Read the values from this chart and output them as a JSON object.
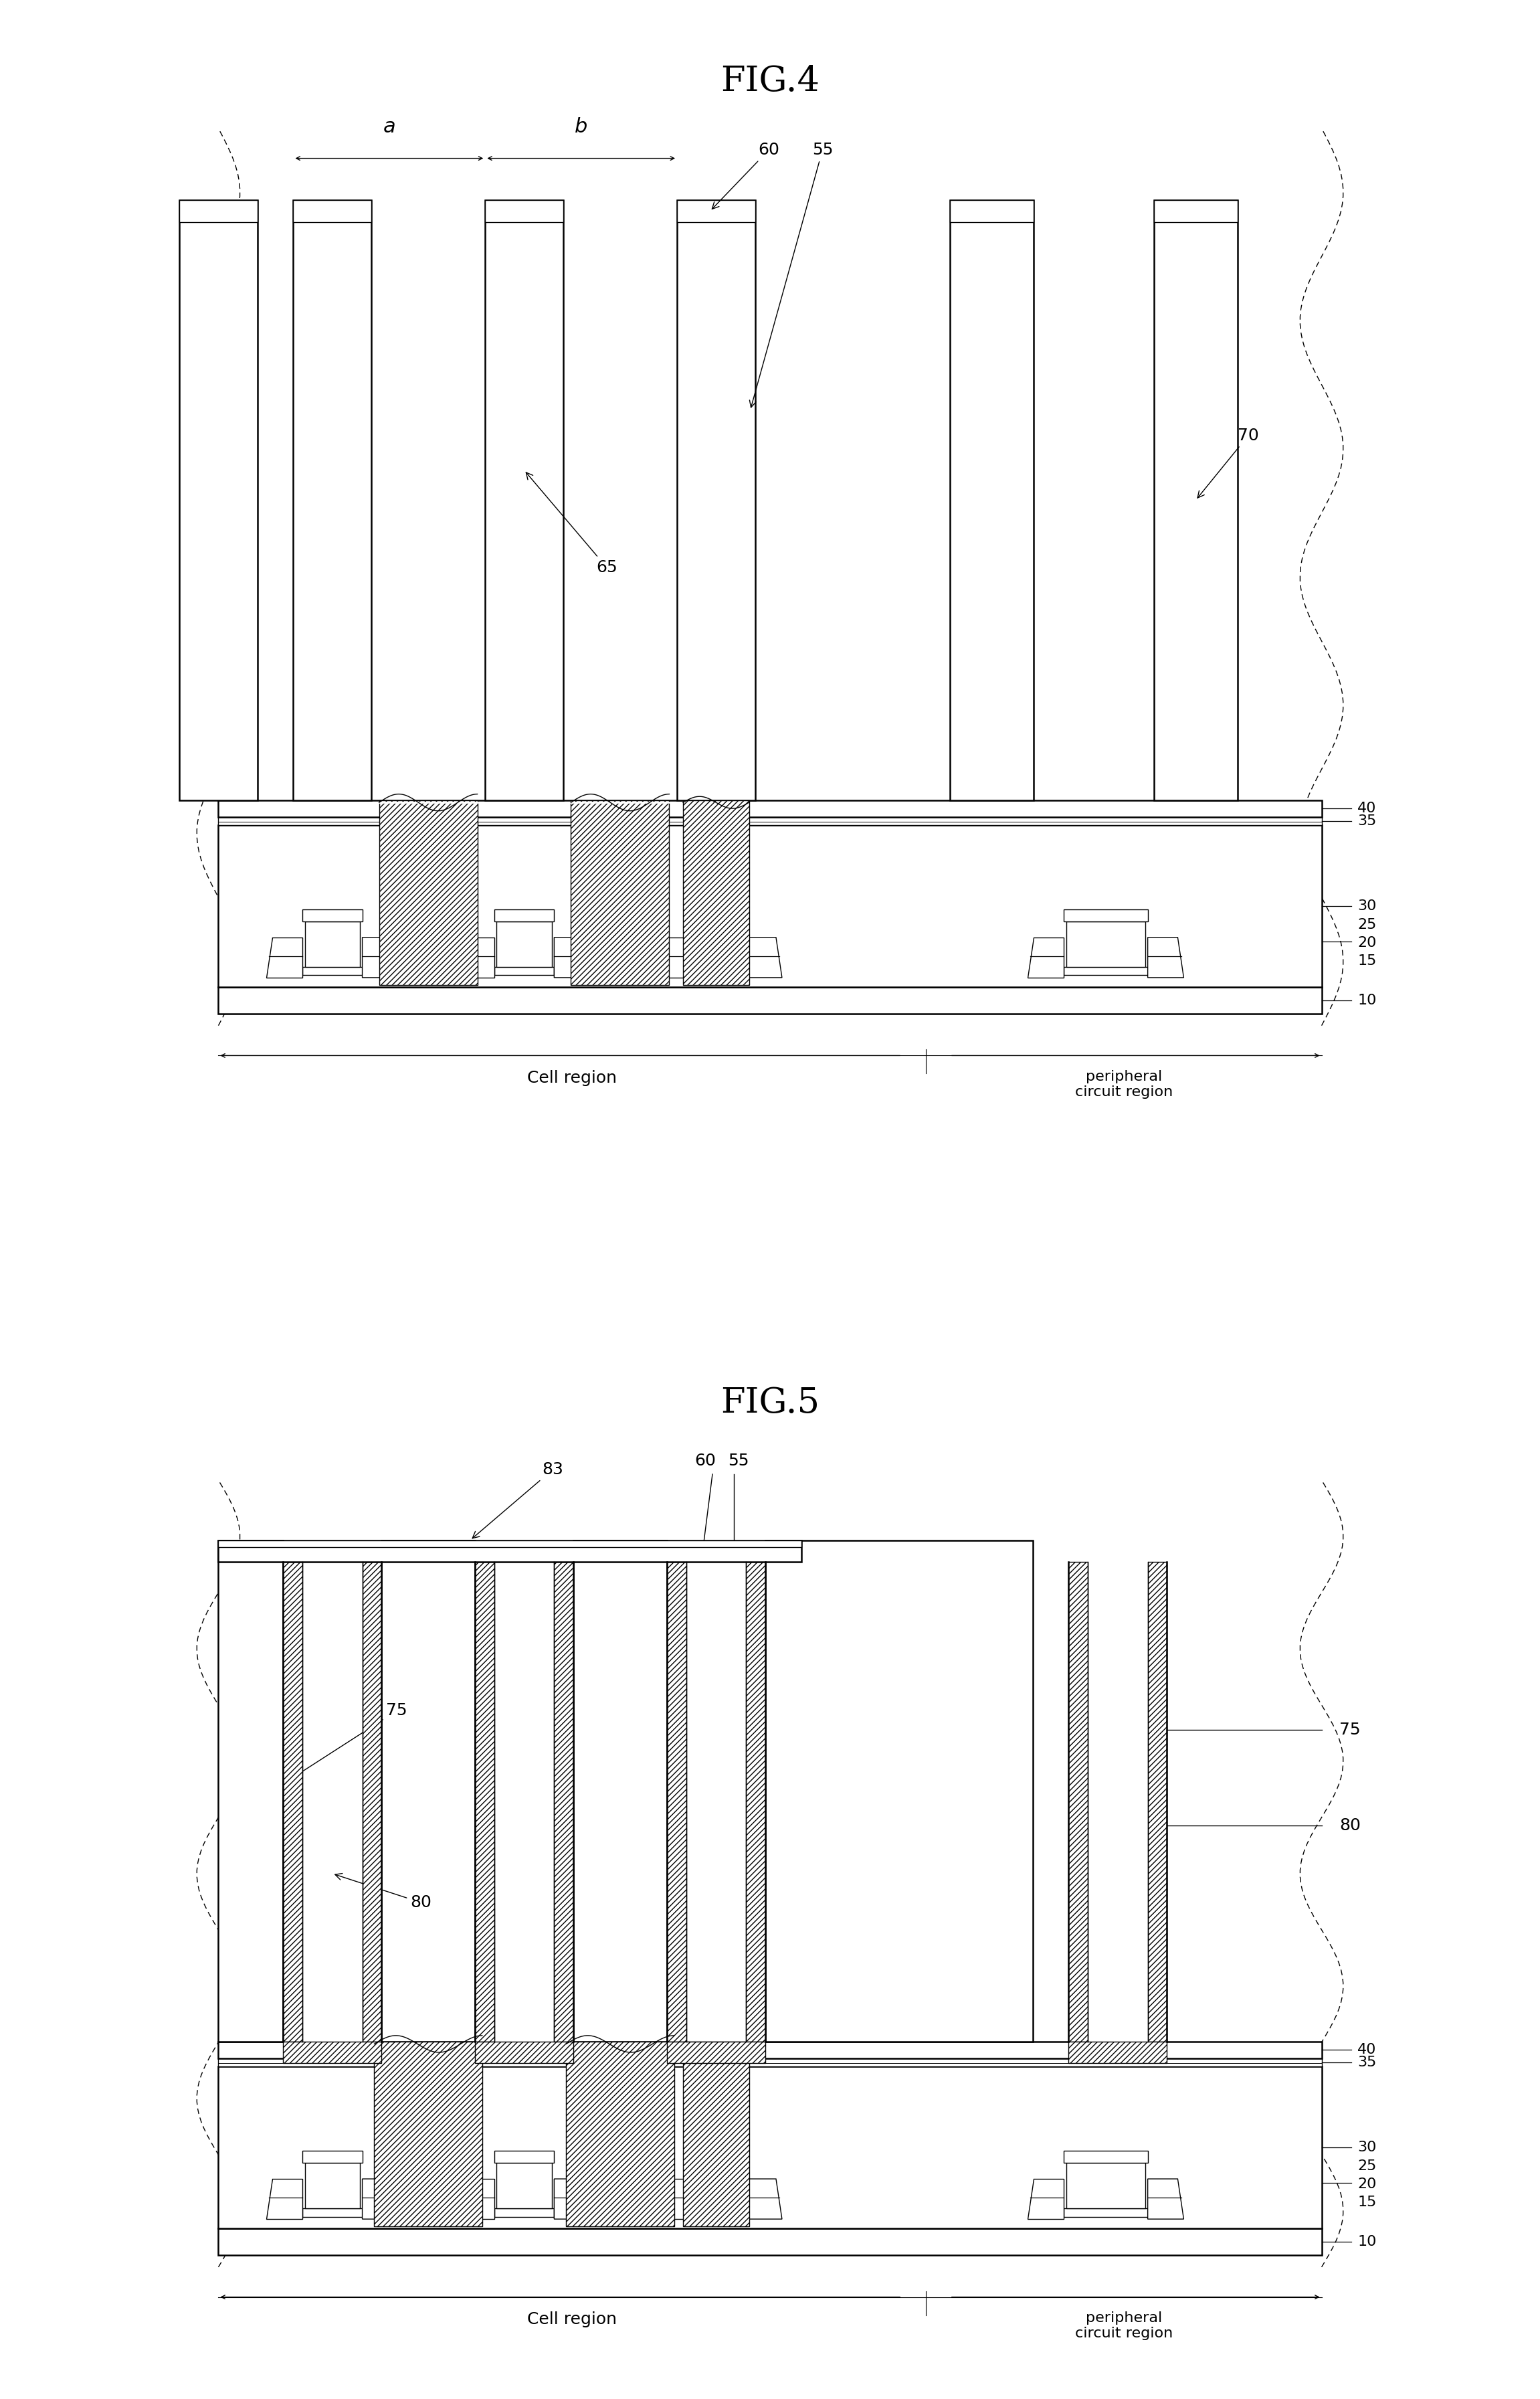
{
  "fig4_title": "FIG.4",
  "fig5_title": "FIG.5",
  "background_color": "#ffffff",
  "cell_region": "Cell region",
  "peripheral": "peripheral\ncircuit region",
  "fig4_labels": {
    "a": "a",
    "b": "b",
    "65": "65",
    "60": "60",
    "55": "55",
    "70": "70",
    "40": "40",
    "35": "35",
    "25": "25",
    "20": "20",
    "15": "15",
    "30": "30",
    "10": "10"
  },
  "fig5_labels": {
    "83": "83",
    "60": "60",
    "55": "55",
    "75": "75",
    "80": "80",
    "40": "40",
    "35": "35",
    "25": "25",
    "20": "20",
    "15": "15",
    "30": "30",
    "10": "10"
  }
}
